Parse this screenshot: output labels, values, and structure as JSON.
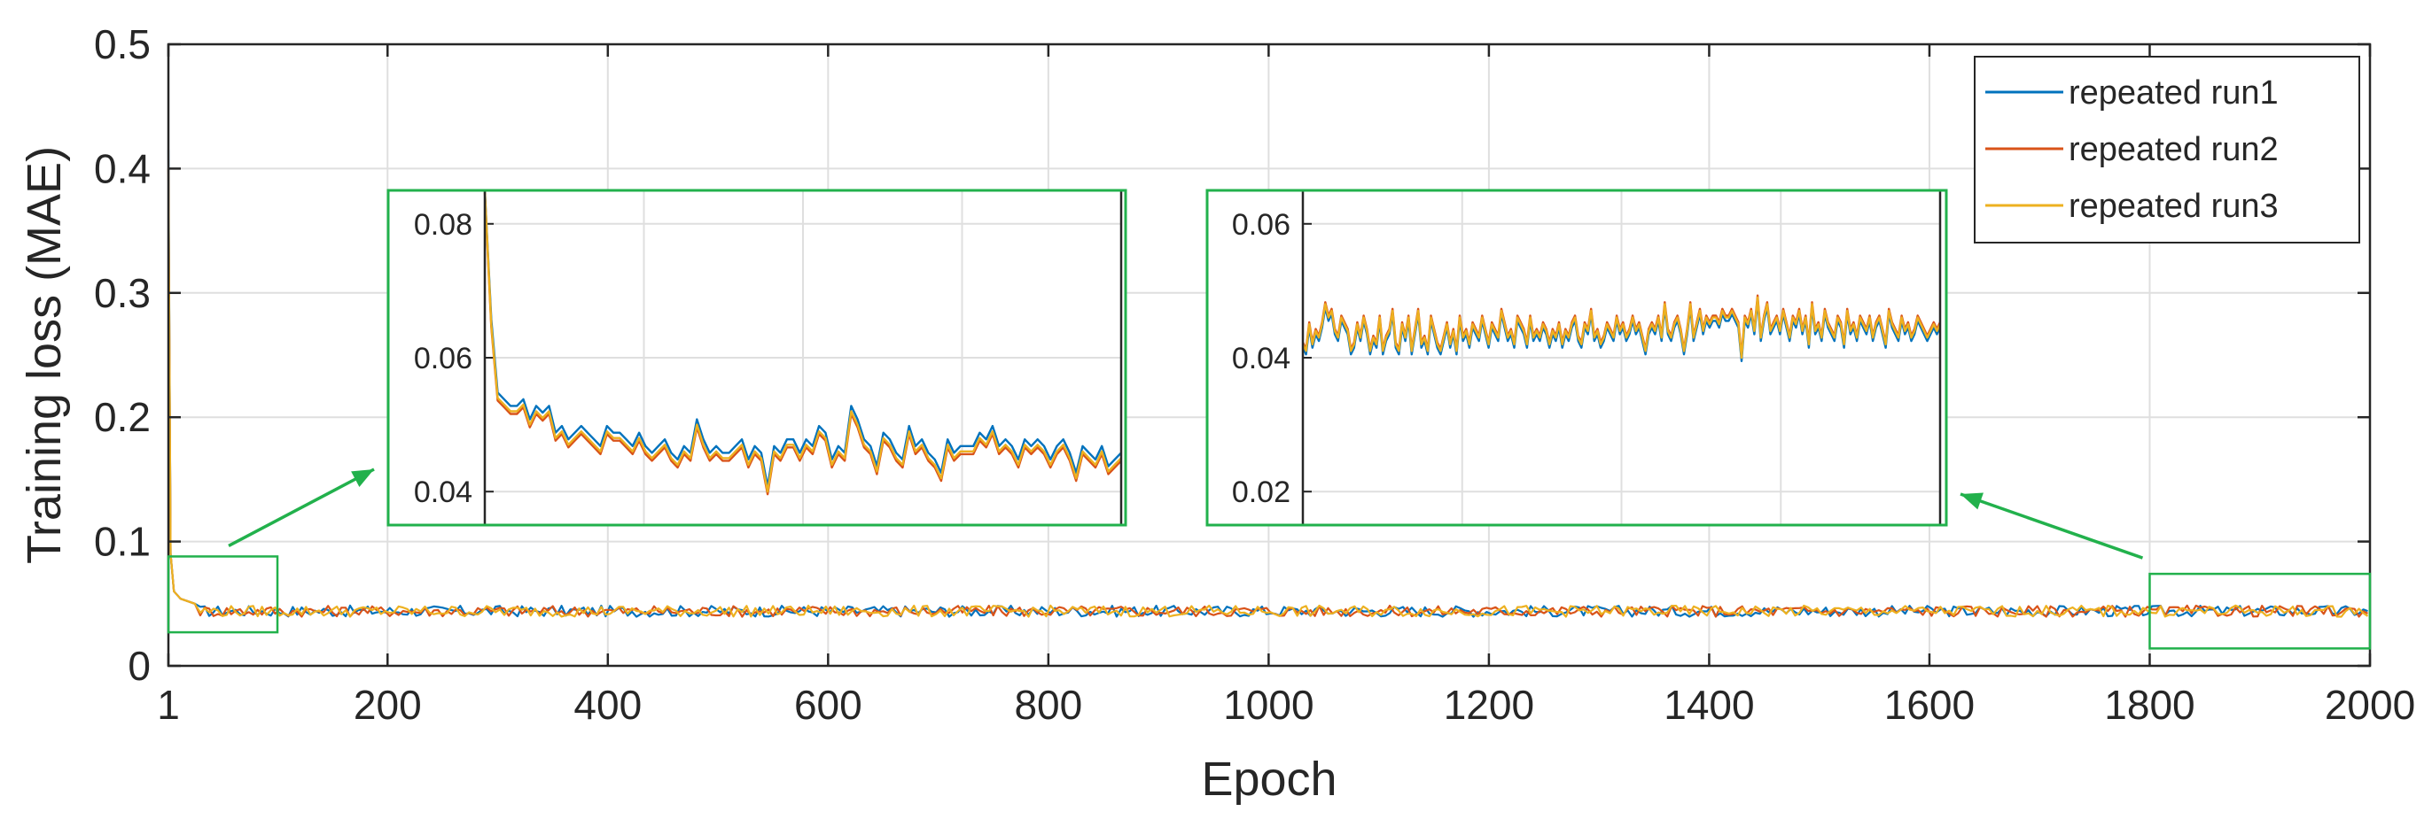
{
  "chart_data": {
    "type": "line",
    "title": "",
    "xlabel": "Epoch",
    "ylabel": "Training loss (MAE)",
    "xlim": [
      1,
      2000
    ],
    "ylim": [
      0,
      0.5
    ],
    "xticks": [
      1,
      200,
      400,
      600,
      800,
      1000,
      1200,
      1400,
      1600,
      1800,
      2000
    ],
    "xtick_labels": [
      "1",
      "200",
      "400",
      "600",
      "800",
      "1000",
      "1200",
      "1400",
      "1600",
      "1800",
      "2000"
    ],
    "yticks": [
      0,
      0.1,
      0.2,
      0.3,
      0.4,
      0.5
    ],
    "ytick_labels": [
      "0",
      "0.1",
      "0.2",
      "0.3",
      "0.4",
      "0.5"
    ],
    "grid": true,
    "legend_position": "top-right",
    "series": [
      {
        "name": "repeated run1",
        "color": "#0072BD",
        "initial": 0.415,
        "steady": 0.044
      },
      {
        "name": "repeated run2",
        "color": "#D95319",
        "initial": 0.4,
        "steady": 0.044
      },
      {
        "name": "repeated run3",
        "color": "#EDB120",
        "initial": 0.4,
        "steady": 0.044
      }
    ],
    "zoom_regions": [
      {
        "x_range": [
          1,
          100
        ],
        "y_range": [
          0.027,
          0.088
        ]
      },
      {
        "x_range": [
          1800,
          2000
        ],
        "y_range": [
          0.014,
          0.074
        ]
      }
    ],
    "insets": [
      {
        "source_region": 0,
        "xlim": [
          1,
          100
        ],
        "ylim": [
          0.035,
          0.085
        ],
        "yticks": [
          0.04,
          0.06,
          0.08
        ],
        "ytick_labels": [
          "0.04",
          "0.06",
          "0.08"
        ],
        "run3": [
          0.085,
          0.065,
          0.054,
          0.053,
          0.052,
          0.052,
          0.053,
          0.05,
          0.052,
          0.051,
          0.052,
          0.048,
          0.049,
          0.047,
          0.048,
          0.049,
          0.048,
          0.047,
          0.046,
          0.049,
          0.048,
          0.048,
          0.047,
          0.046,
          0.048,
          0.046,
          0.045,
          0.046,
          0.047,
          0.045,
          0.044,
          0.046,
          0.045,
          0.05,
          0.047,
          0.045,
          0.046,
          0.045,
          0.045,
          0.046,
          0.047,
          0.044,
          0.046,
          0.045,
          0.04,
          0.046,
          0.045,
          0.047,
          0.047,
          0.045,
          0.047,
          0.046,
          0.049,
          0.048,
          0.044,
          0.046,
          0.045,
          0.052,
          0.05,
          0.047,
          0.046,
          0.043,
          0.048,
          0.047,
          0.045,
          0.044,
          0.049,
          0.046,
          0.047,
          0.045,
          0.044,
          0.042,
          0.047,
          0.045,
          0.046,
          0.046,
          0.046,
          0.048,
          0.047,
          0.049,
          0.046,
          0.047,
          0.046,
          0.044,
          0.047,
          0.046,
          0.047,
          0.046,
          0.044,
          0.046,
          0.047,
          0.045,
          0.042,
          0.046,
          0.045,
          0.044,
          0.046,
          0.043,
          0.044,
          0.045
        ],
        "run1_offset": 0.0008,
        "run2_offset": -0.0004
      },
      {
        "source_region": 1,
        "xlim": [
          1800,
          2000
        ],
        "ylim": [
          0.015,
          0.065
        ],
        "yticks": [
          0.02,
          0.04,
          0.06
        ],
        "ytick_labels": [
          "0.02",
          "0.04",
          "0.06"
        ],
        "run3": [
          0.042,
          0.041,
          0.045,
          0.042,
          0.044,
          0.043,
          0.045,
          0.048,
          0.046,
          0.047,
          0.044,
          0.043,
          0.046,
          0.045,
          0.044,
          0.041,
          0.042,
          0.045,
          0.043,
          0.046,
          0.044,
          0.041,
          0.043,
          0.042,
          0.046,
          0.041,
          0.043,
          0.044,
          0.047,
          0.042,
          0.041,
          0.045,
          0.043,
          0.046,
          0.041,
          0.044,
          0.047,
          0.042,
          0.043,
          0.041,
          0.046,
          0.044,
          0.042,
          0.041,
          0.043,
          0.045,
          0.042,
          0.044,
          0.041,
          0.046,
          0.043,
          0.044,
          0.042,
          0.045,
          0.044,
          0.043,
          0.046,
          0.044,
          0.042,
          0.045,
          0.044,
          0.043,
          0.047,
          0.045,
          0.043,
          0.044,
          0.042,
          0.046,
          0.045,
          0.044,
          0.042,
          0.046,
          0.043,
          0.044,
          0.043,
          0.045,
          0.044,
          0.042,
          0.044,
          0.043,
          0.045,
          0.042,
          0.044,
          0.043,
          0.045,
          0.046,
          0.043,
          0.042,
          0.045,
          0.044,
          0.047,
          0.043,
          0.044,
          0.042,
          0.043,
          0.045,
          0.044,
          0.043,
          0.046,
          0.044,
          0.045,
          0.043,
          0.044,
          0.046,
          0.044,
          0.045,
          0.043,
          0.041,
          0.044,
          0.045,
          0.044,
          0.046,
          0.043,
          0.048,
          0.044,
          0.043,
          0.045,
          0.046,
          0.044,
          0.041,
          0.044,
          0.048,
          0.043,
          0.045,
          0.047,
          0.044,
          0.046,
          0.045,
          0.046,
          0.046,
          0.045,
          0.047,
          0.046,
          0.046,
          0.047,
          0.046,
          0.045,
          0.04,
          0.046,
          0.045,
          0.047,
          0.044,
          0.049,
          0.043,
          0.046,
          0.048,
          0.044,
          0.045,
          0.046,
          0.044,
          0.047,
          0.045,
          0.043,
          0.046,
          0.045,
          0.047,
          0.044,
          0.046,
          0.042,
          0.048,
          0.044,
          0.045,
          0.043,
          0.047,
          0.045,
          0.044,
          0.043,
          0.046,
          0.045,
          0.042,
          0.047,
          0.044,
          0.045,
          0.043,
          0.046,
          0.045,
          0.044,
          0.046,
          0.043,
          0.045,
          0.046,
          0.044,
          0.042,
          0.047,
          0.045,
          0.044,
          0.043,
          0.046,
          0.044,
          0.045,
          0.043,
          0.044,
          0.046,
          0.045,
          0.044,
          0.043,
          0.044,
          0.045,
          0.044,
          0.045
        ],
        "run1_offset": -0.0005,
        "run2_offset": 0.0003
      }
    ],
    "colors": {
      "zoom_box": "#22B14C",
      "axis": "#262626",
      "grid": "#DFDFDF"
    }
  }
}
